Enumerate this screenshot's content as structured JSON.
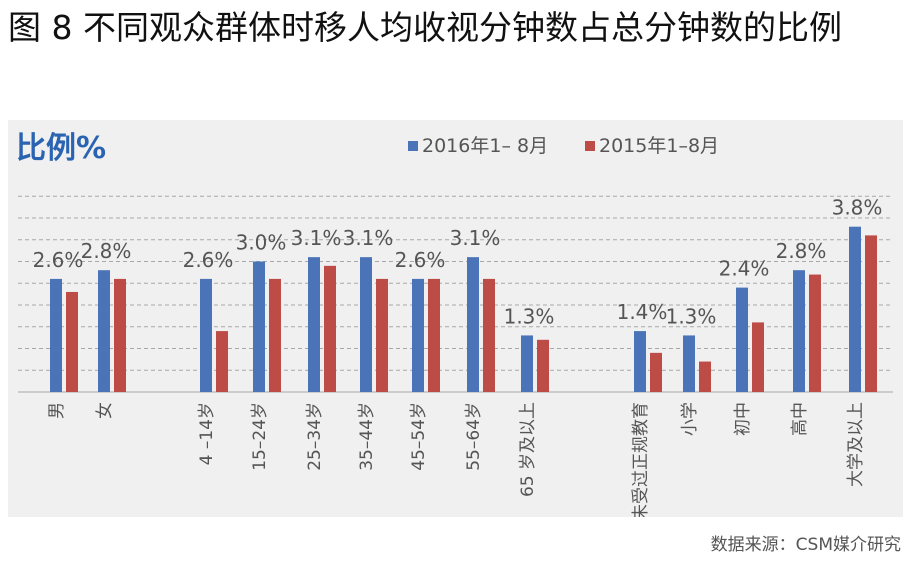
{
  "figure": {
    "title": "图 8  不同观众群体时移人均收视分钟数占总分钟数的比例",
    "source": "数据来源：CSM媒介研究"
  },
  "colors": {
    "series_2016": "#4a73b8",
    "series_2015": "#bd4b46",
    "grid": "#a8a8a8",
    "panel_bg": "#f0f0f0",
    "ylabel": "#2a63b1"
  },
  "chart_data": {
    "type": "bar",
    "ylabel": "比例%",
    "ylim": [
      0,
      4.5
    ],
    "grid": "horizontal dashed",
    "legend_position": "top-center",
    "groups": [
      [
        "男",
        "女"
      ],
      [
        "4 –14岁",
        "15–24岁",
        "25–34岁",
        "35–44岁",
        "45–54岁",
        "55–64岁",
        "65 岁及以上"
      ],
      [
        "未受过正规教育",
        "小学",
        "初中",
        "高中",
        "大学及以上"
      ]
    ],
    "categories": [
      "男",
      "女",
      "4 –14岁",
      "15–24岁",
      "25–34岁",
      "35–44岁",
      "45–54岁",
      "55–64岁",
      "65 岁及以上",
      "未受过正规教育",
      "小学",
      "初中",
      "高中",
      "大学及以上"
    ],
    "data_labels": [
      "2.6%",
      "2.8%",
      "2.6%",
      "3.0%",
      "3.1%",
      "3.1%",
      "2.6%",
      "3.1%",
      "1.3%",
      "1.4%",
      "1.3%",
      "2.4%",
      "2.8%",
      "3.8%"
    ],
    "series": [
      {
        "name": "2016年1– 8月",
        "values": [
          2.6,
          2.8,
          2.6,
          3.0,
          3.1,
          3.1,
          2.6,
          3.1,
          1.3,
          1.4,
          1.3,
          2.4,
          2.8,
          3.8
        ]
      },
      {
        "name": "2015年1–8月",
        "values": [
          2.3,
          2.6,
          1.4,
          2.6,
          2.9,
          2.6,
          2.6,
          2.6,
          1.2,
          0.9,
          0.7,
          1.6,
          2.7,
          3.6
        ]
      }
    ]
  }
}
